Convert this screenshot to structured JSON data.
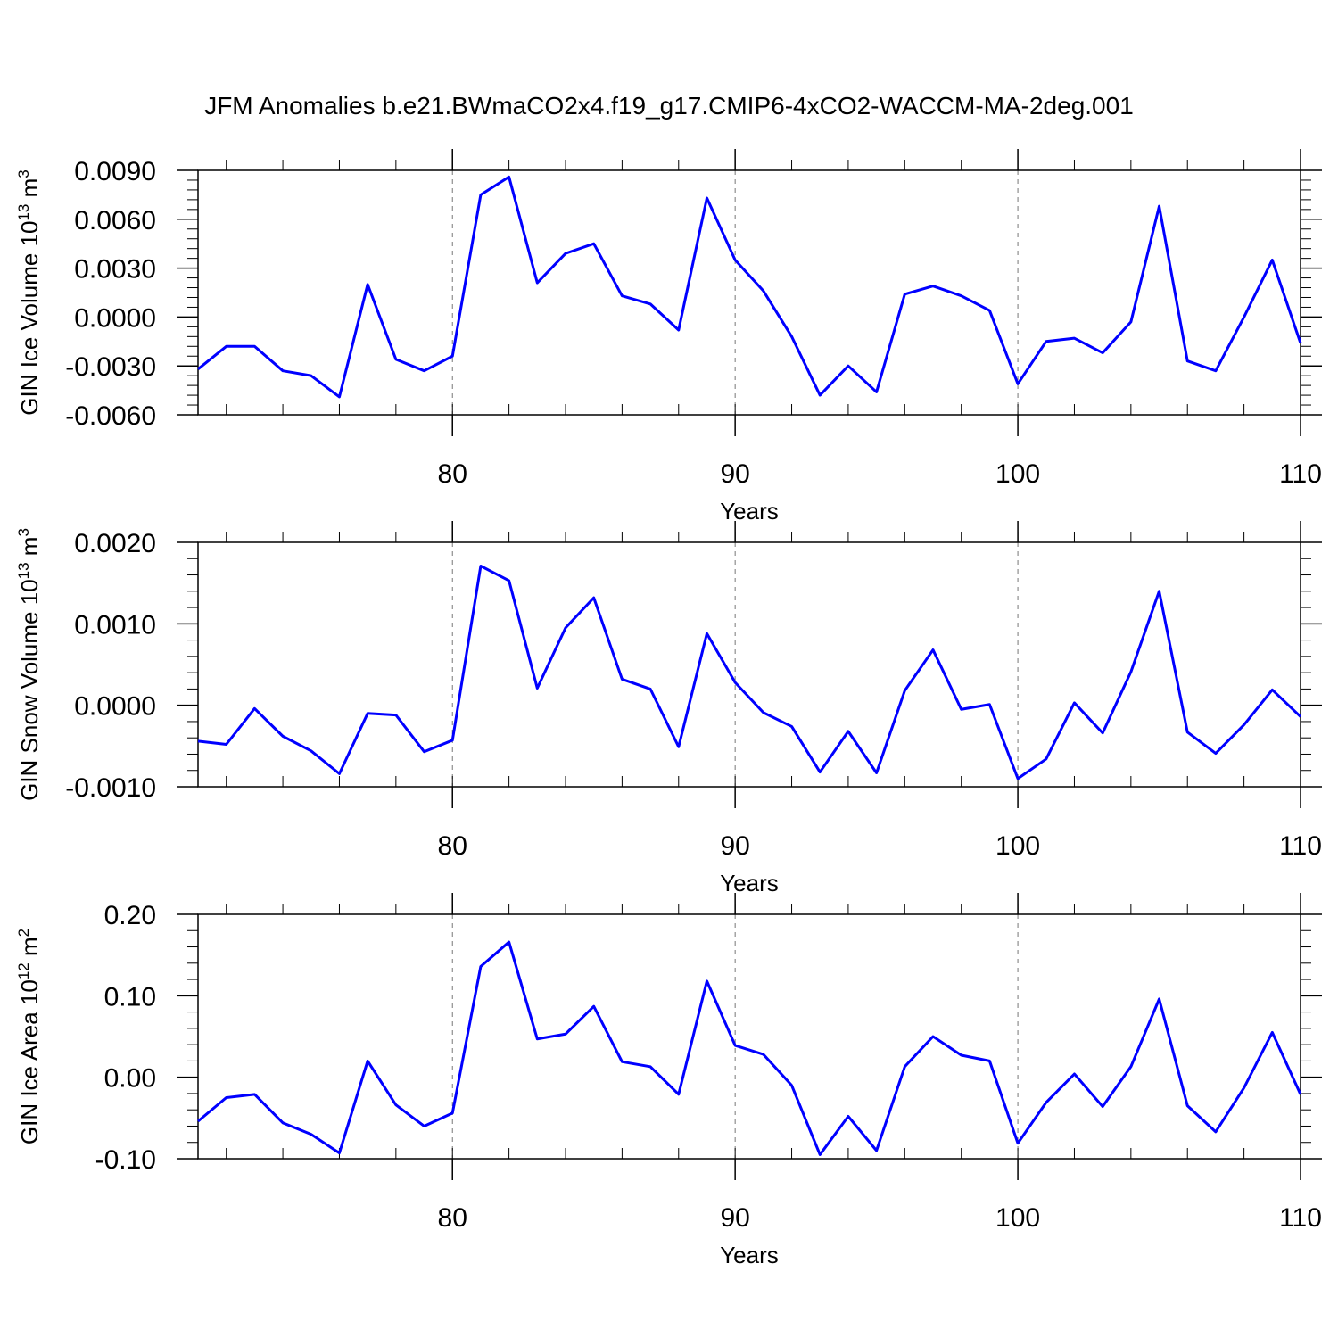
{
  "chart_data": [
    {
      "type": "line",
      "title": "JFM Anomalies b.e21.BWmaCO2x4.f19_g17.CMIP6-4xCO2-WACCM-MA-2deg.001",
      "ylabel": [
        "GIN Ice Volume 10",
        "13",
        " m",
        "3"
      ],
      "xlabel": "Years",
      "x": [
        71,
        72,
        73,
        74,
        75,
        76,
        77,
        78,
        79,
        80,
        81,
        82,
        83,
        84,
        85,
        86,
        87,
        88,
        89,
        90,
        91,
        92,
        93,
        94,
        95,
        96,
        97,
        98,
        99,
        100,
        101,
        102,
        103,
        104,
        105,
        106,
        107,
        108,
        109,
        110
      ],
      "series": [
        {
          "color": "#0000ff",
          "values": [
            -0.0032,
            -0.0018,
            -0.0018,
            -0.0033,
            -0.0036,
            -0.0049,
            0.002,
            -0.0026,
            -0.0033,
            -0.0024,
            0.0075,
            0.0086,
            0.0021,
            0.0039,
            0.0045,
            0.0013,
            0.0008,
            -0.0008,
            0.0073,
            0.0035,
            0.0016,
            -0.0012,
            -0.0048,
            -0.003,
            -0.0046,
            0.0014,
            0.0019,
            0.0013,
            0.0004,
            -0.0041,
            -0.0015,
            -0.0013,
            -0.0022,
            -0.0003,
            0.0068,
            -0.0027,
            -0.0033,
            0.0,
            0.0035,
            -0.0016
          ]
        }
      ],
      "xlim": [
        71,
        110
      ],
      "xticks": [
        80,
        90,
        100,
        110
      ],
      "ylim": [
        -0.006,
        0.009
      ],
      "yticks": [
        {
          "value": -0.006,
          "label": "-0.0060"
        },
        {
          "value": -0.003,
          "label": "-0.0030"
        },
        {
          "value": 0,
          "label": "0.0000"
        },
        {
          "value": 0.003,
          "label": "0.0030"
        },
        {
          "value": 0.006,
          "label": "0.0060"
        },
        {
          "value": 0.009,
          "label": "0.0090"
        }
      ],
      "grid": true
    },
    {
      "type": "line",
      "ylabel": [
        "GIN Snow Volume 10",
        "13",
        " m",
        "3"
      ],
      "xlabel": "Years",
      "x": [
        71,
        72,
        73,
        74,
        75,
        76,
        77,
        78,
        79,
        80,
        81,
        82,
        83,
        84,
        85,
        86,
        87,
        88,
        89,
        90,
        91,
        92,
        93,
        94,
        95,
        96,
        97,
        98,
        99,
        100,
        101,
        102,
        103,
        104,
        105,
        106,
        107,
        108,
        109,
        110
      ],
      "series": [
        {
          "color": "#0000ff",
          "values": [
            -0.00044,
            -0.00048,
            -4e-05,
            -0.00038,
            -0.00056,
            -0.00084,
            -0.0001,
            -0.00012,
            -0.00057,
            -0.00043,
            0.00171,
            0.00153,
            0.00021,
            0.00095,
            0.00132,
            0.00032,
            0.0002,
            -0.00051,
            0.00088,
            0.00028,
            -9e-05,
            -0.00026,
            -0.00082,
            -0.00032,
            -0.00083,
            0.00018,
            0.00068,
            -5e-05,
            1e-05,
            -0.0009,
            -0.00066,
            3e-05,
            -0.00034,
            0.00041,
            0.0014,
            -0.00033,
            -0.00059,
            -0.00024,
            0.00019,
            -0.00014
          ]
        }
      ],
      "xlim": [
        71,
        110
      ],
      "xticks": [
        80,
        90,
        100,
        110
      ],
      "ylim": [
        -0.001,
        0.002
      ],
      "yticks": [
        {
          "value": -0.001,
          "label": "-0.0010"
        },
        {
          "value": 0,
          "label": "0.0000"
        },
        {
          "value": 0.001,
          "label": "0.0010"
        },
        {
          "value": 0.002,
          "label": "0.0020"
        }
      ],
      "grid": true
    },
    {
      "type": "line",
      "ylabel": [
        "GIN Ice Area 10",
        "12",
        " m",
        "2"
      ],
      "xlabel": "Years",
      "x": [
        71,
        72,
        73,
        74,
        75,
        76,
        77,
        78,
        79,
        80,
        81,
        82,
        83,
        84,
        85,
        86,
        87,
        88,
        89,
        90,
        91,
        92,
        93,
        94,
        95,
        96,
        97,
        98,
        99,
        100,
        101,
        102,
        103,
        104,
        105,
        106,
        107,
        108,
        109,
        110
      ],
      "series": [
        {
          "color": "#0000ff",
          "values": [
            -0.054,
            -0.025,
            -0.021,
            -0.056,
            -0.07,
            -0.093,
            0.02,
            -0.034,
            -0.06,
            -0.044,
            0.136,
            0.166,
            0.047,
            0.053,
            0.087,
            0.019,
            0.013,
            -0.021,
            0.118,
            0.039,
            0.028,
            -0.01,
            -0.095,
            -0.048,
            -0.09,
            0.013,
            0.05,
            0.027,
            0.02,
            -0.081,
            -0.031,
            0.004,
            -0.036,
            0.013,
            0.096,
            -0.035,
            -0.067,
            -0.013,
            0.055,
            -0.021
          ]
        }
      ],
      "xlim": [
        71,
        110
      ],
      "xticks": [
        80,
        90,
        100,
        110
      ],
      "ylim": [
        -0.1,
        0.2
      ],
      "yticks": [
        {
          "value": -0.1,
          "label": "-0.10"
        },
        {
          "value": 0,
          "label": "0.00"
        },
        {
          "value": 0.1,
          "label": "0.10"
        },
        {
          "value": 0.2,
          "label": "0.20"
        }
      ],
      "grid": true
    }
  ]
}
